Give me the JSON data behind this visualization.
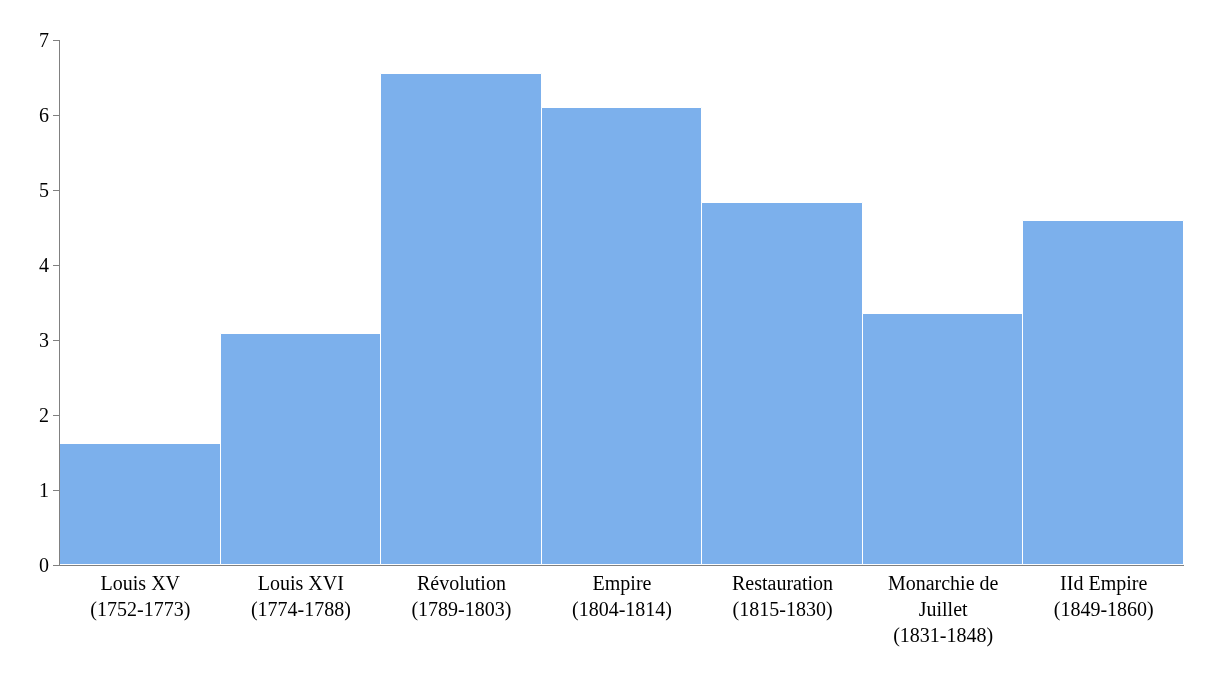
{
  "chart_data": {
    "type": "bar",
    "categories": [
      "Louis XV\n(1752-1773)",
      "Louis XVI\n(1774-1788)",
      "Révolution\n(1789-1803)",
      "Empire\n(1804-1814)",
      "Restauration\n(1815-1830)",
      "Monarchie de\nJuillet\n(1831-1848)",
      "IId Empire\n(1849-1860)"
    ],
    "values": [
      1.61,
      3.08,
      6.55,
      6.1,
      4.83,
      3.35,
      4.59
    ],
    "color": "#7cb0ec",
    "ylim": [
      0,
      7
    ],
    "yticks": [
      0,
      1,
      2,
      3,
      4,
      5,
      6,
      7
    ]
  }
}
